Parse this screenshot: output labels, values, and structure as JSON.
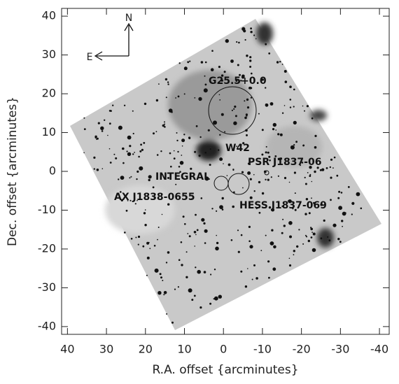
{
  "chart_data": {
    "type": "image",
    "x_label": "R.A. offset {arcminutes}",
    "y_label": "Dec. offset {arcminutes}",
    "xlim": [
      41.5,
      -42.5
    ],
    "ylim": [
      -42,
      42
    ],
    "xticks": [
      40,
      30,
      20,
      10,
      0,
      -10,
      -20,
      -30,
      -40
    ],
    "yticks": [
      40,
      30,
      20,
      10,
      0,
      -10,
      -20,
      -30,
      -40
    ],
    "compass": {
      "north": "N",
      "east": "E"
    },
    "annotations": [
      "G25.5+0.0",
      "W42",
      "PSR J1837-06",
      "INTEGRAL",
      "AX J1838-0655",
      "HESS J1837-069"
    ]
  }
}
